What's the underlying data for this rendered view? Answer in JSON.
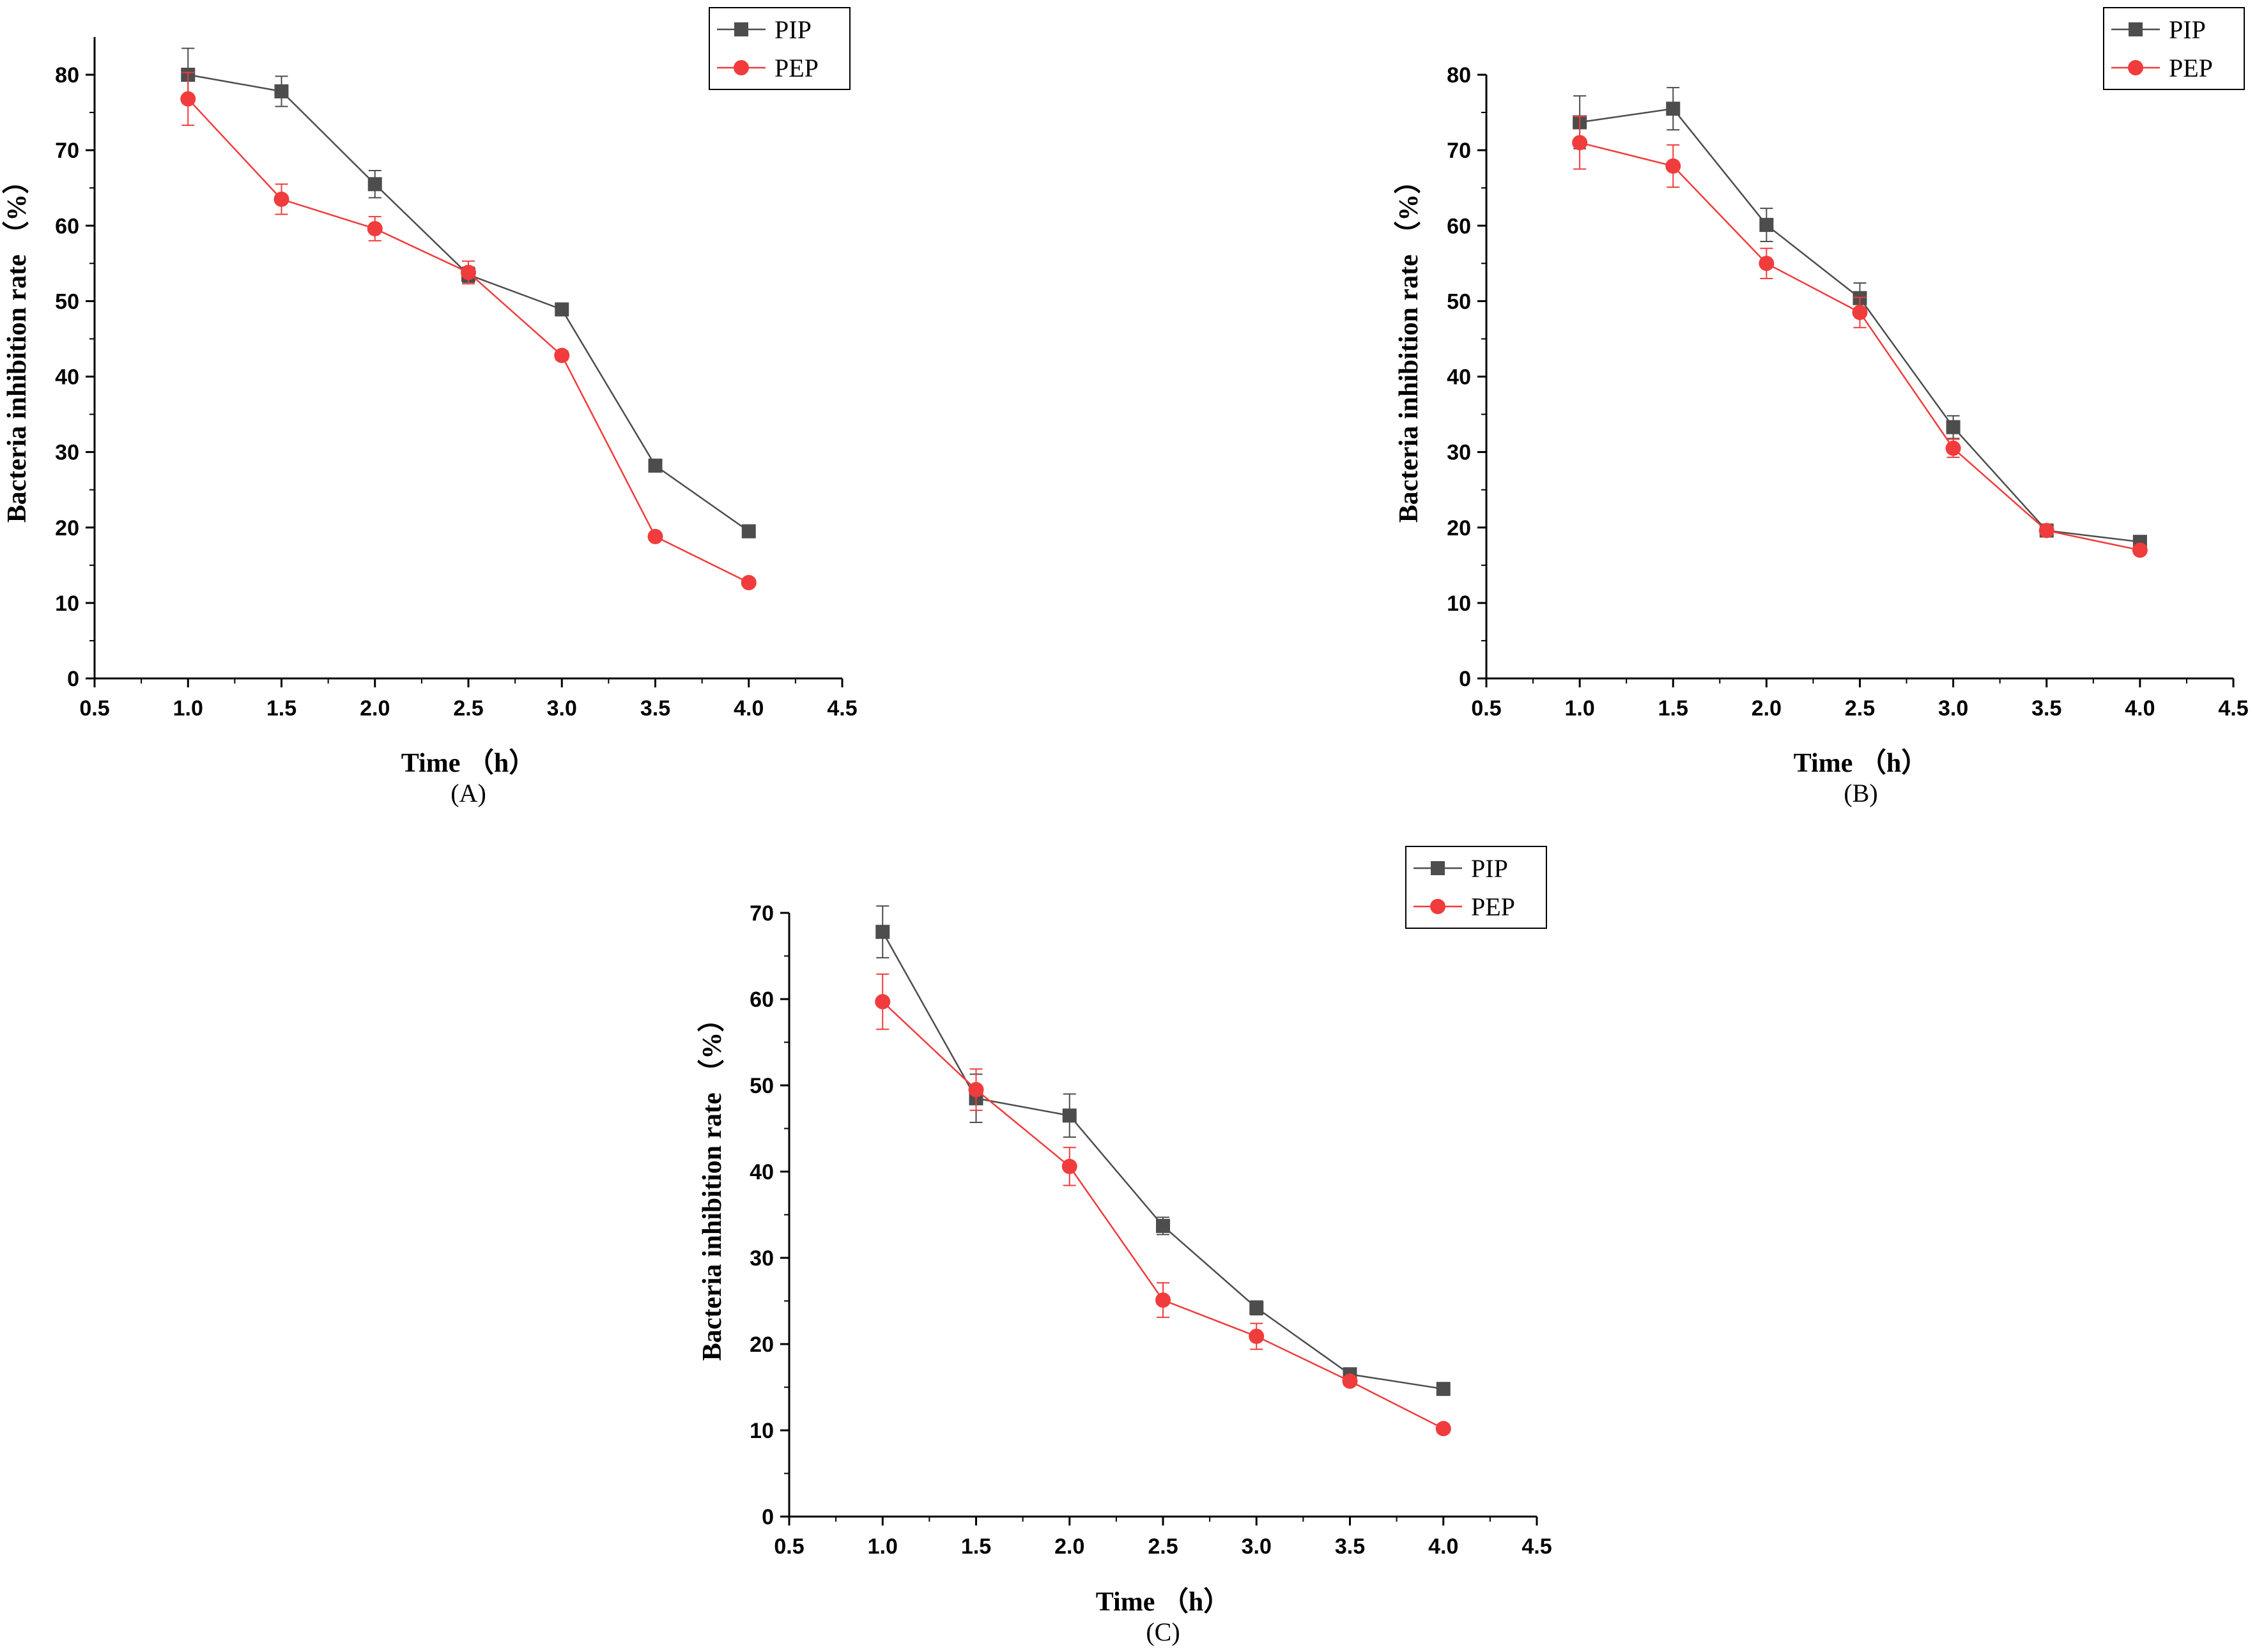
{
  "chart_data": [
    {
      "panel": "(A)",
      "type": "line",
      "xlabel": "Time （h）",
      "ylabel": "Bacteria inhibition rate （%）",
      "xlim": [
        0.5,
        4.5
      ],
      "ylim": [
        0,
        85
      ],
      "xticks": [
        "0.5",
        "1.0",
        "1.5",
        "2.0",
        "2.5",
        "3.0",
        "3.5",
        "4.0",
        "4.5"
      ],
      "yticks": [
        "0",
        "10",
        "20",
        "30",
        "40",
        "50",
        "60",
        "70",
        "80"
      ],
      "x": [
        1.0,
        1.5,
        2.0,
        2.5,
        3.0,
        3.5,
        4.0
      ],
      "series": [
        {
          "name": "PIP",
          "color": "#4d4d4d",
          "marker": "square",
          "values": [
            80.0,
            77.8,
            65.5,
            53.5,
            48.9,
            28.2,
            19.5
          ],
          "errors": [
            3.5,
            2.0,
            1.8,
            1.0,
            0.8,
            0.5,
            0.5
          ]
        },
        {
          "name": "PEP",
          "color": "#f03c3c",
          "marker": "circle",
          "values": [
            76.8,
            63.5,
            59.6,
            53.8,
            42.8,
            18.8,
            12.7
          ],
          "errors": [
            3.5,
            2.0,
            1.6,
            1.5,
            0.6,
            0.5,
            0.5
          ]
        }
      ]
    },
    {
      "panel": "(B)",
      "type": "line",
      "xlabel": "Time （h）",
      "ylabel": "Bacteria inhibition rate （%）",
      "xlim": [
        0.5,
        4.5
      ],
      "ylim": [
        0,
        80
      ],
      "xticks": [
        "0.5",
        "1.0",
        "1.5",
        "2.0",
        "2.5",
        "3.0",
        "3.5",
        "4.0",
        "4.5"
      ],
      "yticks": [
        "0",
        "10",
        "20",
        "30",
        "40",
        "50",
        "60",
        "70",
        "80"
      ],
      "x": [
        1.0,
        1.5,
        2.0,
        2.5,
        3.0,
        3.5,
        4.0
      ],
      "series": [
        {
          "name": "PIP",
          "color": "#4d4d4d",
          "marker": "square",
          "values": [
            73.7,
            75.5,
            60.1,
            50.4,
            33.3,
            19.6,
            18.1
          ],
          "errors": [
            3.5,
            2.8,
            2.2,
            2.0,
            1.5,
            0.5,
            0.5
          ]
        },
        {
          "name": "PEP",
          "color": "#f03c3c",
          "marker": "circle",
          "values": [
            71.0,
            67.9,
            55.0,
            48.5,
            30.5,
            19.6,
            17.0
          ],
          "errors": [
            3.5,
            2.8,
            2.0,
            2.0,
            1.2,
            0.5,
            0.5
          ]
        }
      ]
    },
    {
      "panel": "(C)",
      "type": "line",
      "xlabel": "Time （h）",
      "ylabel": "Bacteria inhibition rate （%）",
      "xlim": [
        0.5,
        4.5
      ],
      "ylim": [
        0,
        70
      ],
      "xticks": [
        "0.5",
        "1.0",
        "1.5",
        "2.0",
        "2.5",
        "3.0",
        "3.5",
        "4.0",
        "4.5"
      ],
      "yticks": [
        "0",
        "10",
        "20",
        "30",
        "40",
        "50",
        "60",
        "70"
      ],
      "x": [
        1.0,
        1.5,
        2.0,
        2.5,
        3.0,
        3.5,
        4.0
      ],
      "series": [
        {
          "name": "PIP",
          "color": "#4d4d4d",
          "marker": "square",
          "values": [
            67.8,
            48.5,
            46.5,
            33.7,
            24.2,
            16.5,
            14.8
          ],
          "errors": [
            3.0,
            2.8,
            2.5,
            1.0,
            0.8,
            0.5,
            0.5
          ]
        },
        {
          "name": "PEP",
          "color": "#f03c3c",
          "marker": "circle",
          "values": [
            59.7,
            49.5,
            40.6,
            25.1,
            20.9,
            15.7,
            10.2
          ],
          "errors": [
            3.2,
            2.4,
            2.2,
            2.0,
            1.5,
            0.5,
            0.5
          ]
        }
      ]
    }
  ]
}
